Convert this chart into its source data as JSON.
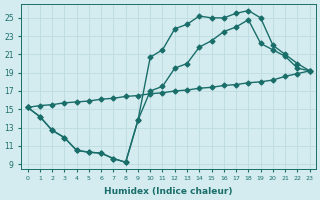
{
  "xlabel": "Humidex (Indice chaleur)",
  "bg_color": "#d4ecf0",
  "grid_color": "#c0dde2",
  "line_color": "#1a6e6a",
  "xlim": [
    -0.5,
    23.5
  ],
  "ylim": [
    8.5,
    26.5
  ],
  "xticks": [
    0,
    1,
    2,
    3,
    4,
    5,
    6,
    7,
    8,
    9,
    10,
    11,
    12,
    13,
    14,
    15,
    16,
    17,
    18,
    19,
    20,
    21,
    22,
    23
  ],
  "yticks": [
    9,
    11,
    13,
    15,
    17,
    19,
    21,
    23,
    25
  ],
  "line1_x": [
    0,
    1,
    2,
    3,
    4,
    5,
    6,
    7,
    8,
    9,
    10,
    11,
    12,
    13,
    14,
    15,
    16,
    17,
    18,
    19,
    20,
    21,
    22,
    23
  ],
  "line1_y": [
    15.2,
    14.2,
    12.7,
    11.9,
    10.5,
    10.3,
    10.2,
    9.6,
    9.2,
    13.8,
    20.7,
    21.5,
    23.8,
    24.3,
    25.2,
    25.0,
    25.0,
    25.5,
    25.8,
    25.0,
    22.0,
    21.0,
    20.0,
    19.2
  ],
  "line2_x": [
    0,
    1,
    2,
    3,
    4,
    5,
    6,
    7,
    8,
    9,
    10,
    11,
    12,
    13,
    14,
    15,
    16,
    17,
    18,
    19,
    20,
    21,
    22,
    23
  ],
  "line2_y": [
    15.2,
    14.2,
    12.7,
    11.9,
    10.5,
    10.3,
    10.2,
    9.6,
    9.2,
    13.8,
    17.0,
    17.5,
    19.5,
    20.0,
    21.8,
    22.5,
    23.5,
    24.0,
    24.8,
    22.2,
    21.5,
    20.8,
    19.5,
    19.2
  ],
  "line3_x": [
    0,
    1,
    2,
    3,
    4,
    5,
    6,
    7,
    8,
    9,
    10,
    11,
    12,
    13,
    14,
    15,
    16,
    17,
    18,
    19,
    20,
    21,
    22,
    23
  ],
  "line3_y": [
    15.2,
    15.4,
    15.5,
    15.7,
    15.8,
    15.9,
    16.1,
    16.2,
    16.4,
    16.5,
    16.7,
    16.8,
    17.0,
    17.1,
    17.3,
    17.4,
    17.6,
    17.7,
    17.9,
    18.0,
    18.2,
    18.6,
    18.9,
    19.2
  ],
  "marker": "D",
  "markersize": 2.5,
  "linewidth": 1.0
}
